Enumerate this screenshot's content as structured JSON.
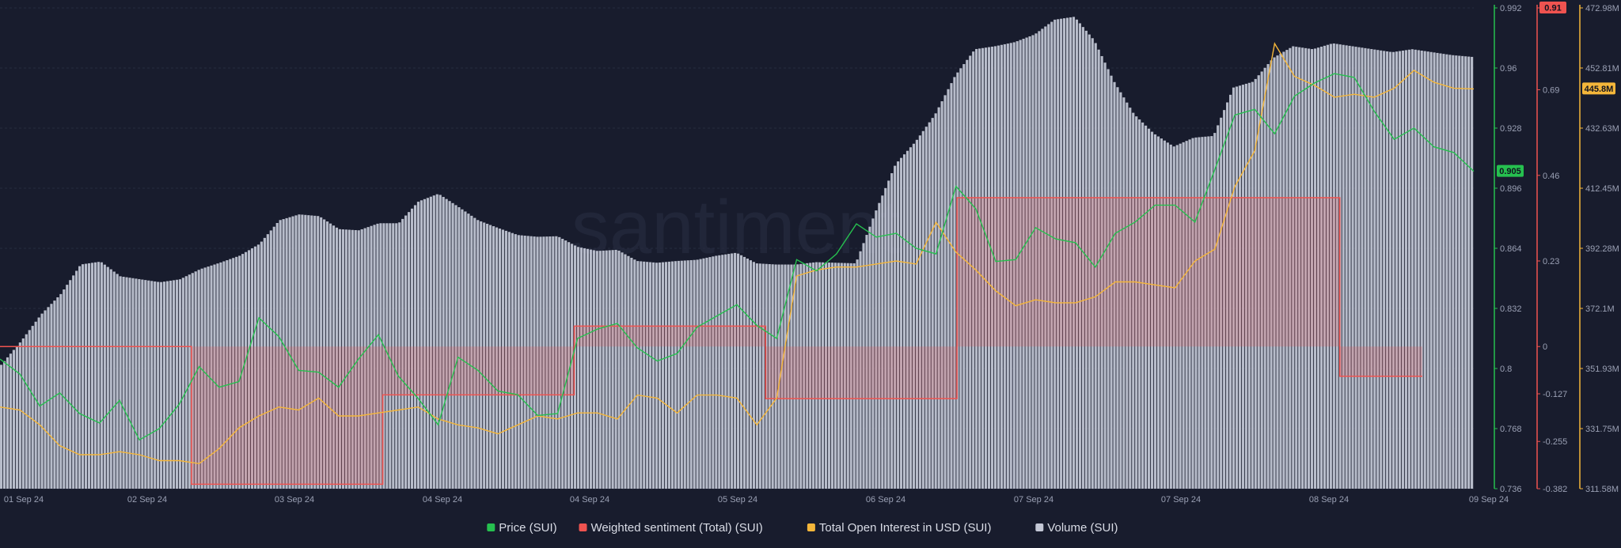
{
  "watermark": "santiment",
  "colors": {
    "background": "#181c2d",
    "price": "#26c04f",
    "sentiment": "#ef5350",
    "open_interest": "#f4b63a",
    "volume": "#c4c8d6"
  },
  "chart_data": {
    "type": "line",
    "x_ticks": [
      "01 Sep 24",
      "02 Sep 24",
      "03 Sep 24",
      "04 Sep 24",
      "04 Sep 24",
      "05 Sep 24",
      "06 Sep 24",
      "07 Sep 24",
      "07 Sep 24",
      "08 Sep 24",
      "09 Sep 24"
    ],
    "axes": {
      "price": {
        "ticks": [
          "0.992",
          "0.96",
          "0.928",
          "0.896",
          "0.864",
          "0.832",
          "0.8",
          "0.768",
          "0.736"
        ],
        "range": [
          0.736,
          0.992
        ],
        "current": "0.905"
      },
      "sentiment": {
        "ticks": [
          "0.91",
          "0.69",
          "0.46",
          "0.23",
          "0",
          "-0.127",
          "-0.255",
          "-0.382"
        ],
        "range": [
          -0.382,
          0.91
        ],
        "current": "0.91"
      },
      "open_interest": {
        "ticks": [
          "472.98M",
          "452.81M",
          "432.63M",
          "412.45M",
          "392.28M",
          "372.1M",
          "351.93M",
          "331.75M",
          "311.58M"
        ],
        "range": [
          311.58,
          472.98
        ],
        "current": "445.8M"
      }
    },
    "legend_position": "bottom-center",
    "series": [
      {
        "name": "Price (SUI)",
        "color": "#26c04f",
        "values": [
          0.805,
          0.797,
          0.78,
          0.787,
          0.776,
          0.771,
          0.783,
          0.762,
          0.768,
          0.781,
          0.801,
          0.79,
          0.793,
          0.827,
          0.817,
          0.799,
          0.798,
          0.79,
          0.805,
          0.818,
          0.796,
          0.784,
          0.77,
          0.806,
          0.799,
          0.788,
          0.786,
          0.775,
          0.776,
          0.816,
          0.821,
          0.824,
          0.811,
          0.804,
          0.808,
          0.822,
          0.828,
          0.834,
          0.823,
          0.816,
          0.858,
          0.852,
          0.861,
          0.877,
          0.87,
          0.872,
          0.864,
          0.861,
          0.897,
          0.885,
          0.857,
          0.858,
          0.875,
          0.869,
          0.867,
          0.854,
          0.872,
          0.878,
          0.887,
          0.887,
          0.878,
          0.906,
          0.935,
          0.938,
          0.925,
          0.945,
          0.952,
          0.957,
          0.955,
          0.937,
          0.922,
          0.928,
          0.918,
          0.915,
          0.905
        ]
      },
      {
        "name": "Weighted sentiment (Total) (SUI)",
        "color": "#ef5350",
        "values": [
          0,
          -0.37,
          -0.13,
          0.055,
          -0.14,
          0.4,
          0.4,
          -0.08,
          0.9
        ]
      },
      {
        "name": "Total Open Interest in USD (SUI)",
        "color": "#f4b63a",
        "values": [
          339,
          338,
          333,
          326,
          323,
          323,
          324,
          323,
          321,
          321,
          320,
          325,
          332,
          336,
          339,
          338,
          342,
          336,
          336,
          337,
          338,
          339,
          335,
          333,
          332,
          330,
          333,
          336,
          335,
          337,
          337,
          335,
          343,
          342,
          337,
          343,
          343,
          342,
          333,
          342,
          383,
          385,
          386,
          386,
          387,
          388,
          387,
          401,
          391,
          385,
          378,
          373,
          375,
          374,
          374,
          376,
          381,
          381,
          380,
          379,
          388,
          392,
          413,
          425,
          461,
          450,
          447,
          443,
          444,
          443,
          446,
          452,
          448,
          446,
          445.8
        ]
      },
      {
        "name": "Volume (SUI)",
        "color": "#c4c8d6",
        "values": [
          2100,
          2500,
          2950,
          3300,
          3800,
          3850,
          3600,
          3550,
          3500,
          3550,
          3720,
          3830,
          3950,
          4150,
          4550,
          4650,
          4620,
          4400,
          4380,
          4500,
          4500,
          4870,
          5000,
          4780,
          4550,
          4420,
          4300,
          4270,
          4280,
          4100,
          4030,
          4050,
          3860,
          3830,
          3860,
          3880,
          3950,
          4000,
          3820,
          3800,
          3800,
          3840,
          3830,
          3820,
          4700,
          5500,
          5880,
          6350,
          7000,
          7450,
          7500,
          7570,
          7700,
          7950,
          8000,
          7600,
          6900,
          6350,
          6020,
          5800,
          5950,
          5980,
          6800,
          6900,
          7300,
          7500,
          7450,
          7550,
          7500,
          7450,
          7400,
          7450,
          7400,
          7350,
          7320
        ]
      }
    ]
  },
  "legend": {
    "items": [
      {
        "label": "Price (SUI)",
        "color": "#26c04f"
      },
      {
        "label": "Weighted sentiment (Total) (SUI)",
        "color": "#ef5350"
      },
      {
        "label": "Total Open Interest in USD (SUI)",
        "color": "#f4b63a"
      },
      {
        "label": "Volume (SUI)",
        "color": "#c4c8d6"
      }
    ]
  }
}
